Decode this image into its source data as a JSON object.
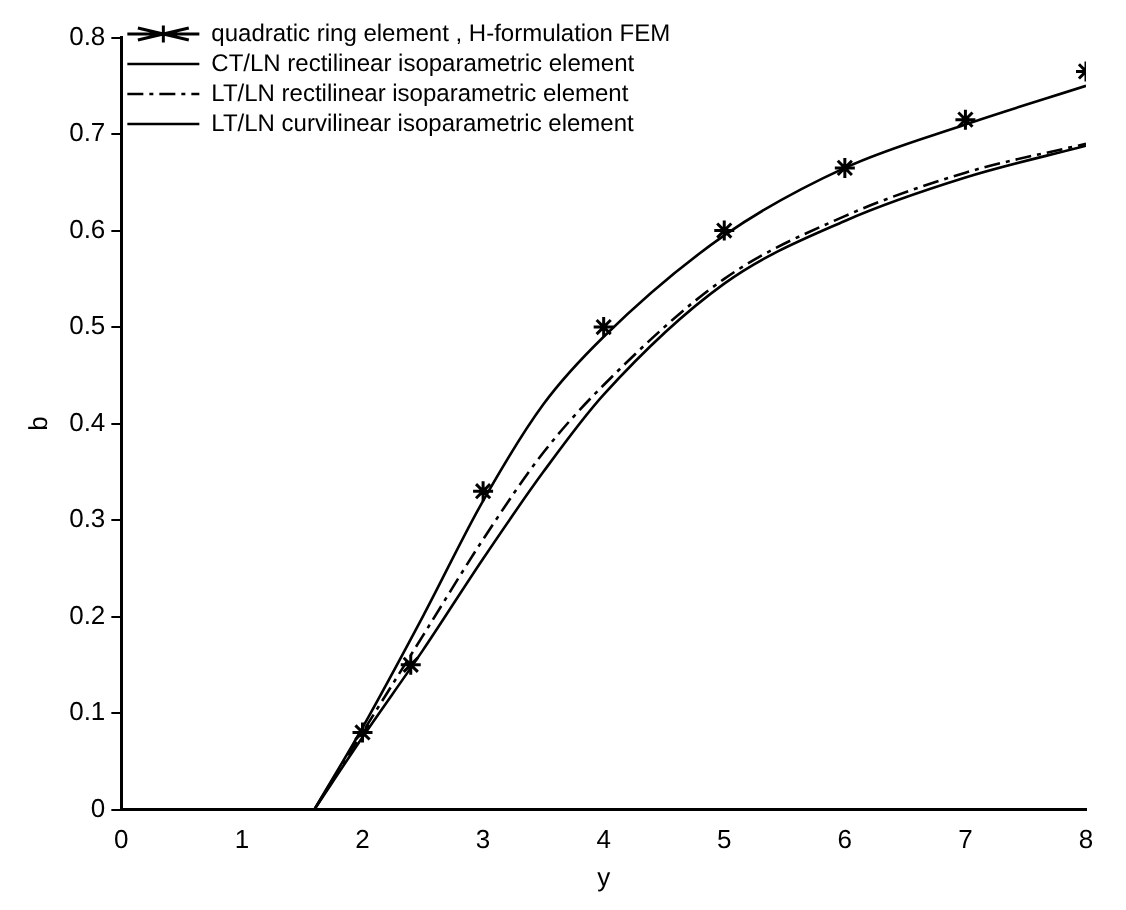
{
  "chart_data": {
    "type": "line",
    "xlabel": "y",
    "ylabel": "b",
    "xlim": [
      0,
      8
    ],
    "ylim": [
      0,
      0.8
    ],
    "xticks": [
      0,
      1,
      2,
      3,
      4,
      5,
      6,
      7,
      8
    ],
    "yticks": [
      0,
      0.1,
      0.2,
      0.3,
      0.4,
      0.5,
      0.6,
      0.7,
      0.8
    ],
    "grid": false,
    "legend": "top left",
    "series": [
      {
        "name": "quadratic ring element , H-formulation FEM",
        "type": "scatter",
        "marker": "cross",
        "color": "#000000",
        "x": [
          2,
          2.4,
          3,
          4,
          5,
          6,
          7,
          8
        ],
        "values": [
          0.08,
          0.15,
          0.33,
          0.5,
          0.6,
          0.665,
          0.715,
          0.765
        ]
      },
      {
        "name": "CT/LN rectilinear isoparametric element",
        "type": "line",
        "line_style": "solid",
        "color": "#000000",
        "x": [
          1.6,
          2,
          2.5,
          3,
          3.5,
          4,
          5,
          6,
          7,
          8
        ],
        "values": [
          0,
          0.085,
          0.2,
          0.32,
          0.42,
          0.49,
          0.595,
          0.665,
          0.71,
          0.75
        ]
      },
      {
        "name": "LT/LN rectilinear isoparametric element",
        "type": "line",
        "line_style": "dashed",
        "color": "#000000",
        "x": [
          1.6,
          2,
          2.5,
          3,
          3.5,
          4,
          5,
          6,
          7,
          8
        ],
        "values": [
          0,
          0.08,
          0.18,
          0.28,
          0.37,
          0.44,
          0.55,
          0.615,
          0.66,
          0.69
        ]
      },
      {
        "name": "LT/LN curvilinear isoparametric element",
        "type": "line",
        "line_style": "solid",
        "color": "#000000",
        "x": [
          1.6,
          2,
          2.5,
          3,
          3.5,
          4,
          5,
          6,
          7,
          8
        ],
        "values": [
          0,
          0.075,
          0.165,
          0.26,
          0.35,
          0.43,
          0.545,
          0.61,
          0.655,
          0.688
        ]
      }
    ]
  }
}
